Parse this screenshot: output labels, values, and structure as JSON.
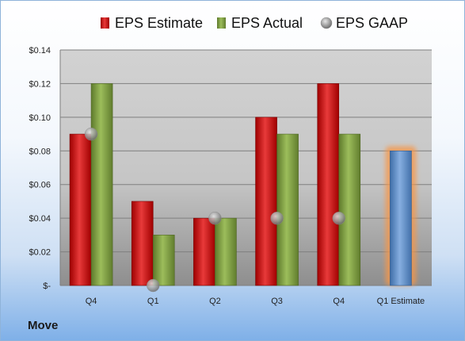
{
  "chart_data": {
    "type": "bar",
    "title": "",
    "xlabel": "",
    "ylabel": "",
    "categories": [
      "Q4",
      "Q1",
      "Q2",
      "Q3",
      "Q4",
      "Q1 Estimate"
    ],
    "ylim": [
      0,
      0.14
    ],
    "yticks": [
      0,
      0.02,
      0.04,
      0.06,
      0.08,
      0.1,
      0.12,
      0.14
    ],
    "ytick_labels": [
      "$-",
      "$0.02",
      "$0.04",
      "$0.06",
      "$0.08",
      "$0.10",
      "$0.12",
      "$0.14"
    ],
    "grid": true,
    "legend_position": "top",
    "series": [
      {
        "name": "EPS Estimate",
        "type": "bar",
        "color": "#c00000",
        "values": [
          0.09,
          0.05,
          0.04,
          0.1,
          0.12,
          null
        ]
      },
      {
        "name": "EPS Actual",
        "type": "bar",
        "color": "#77933c",
        "values": [
          0.12,
          0.03,
          0.04,
          0.09,
          0.09,
          0.08
        ]
      },
      {
        "name": "EPS GAAP",
        "type": "scatter",
        "color": "#a6a6a6",
        "values": [
          0.09,
          0.0,
          0.04,
          0.04,
          0.04,
          null
        ]
      }
    ],
    "highlight_color": "#4f81bd",
    "highlight_glow": "#f79646",
    "highlight_category": 5
  },
  "company": "Move"
}
